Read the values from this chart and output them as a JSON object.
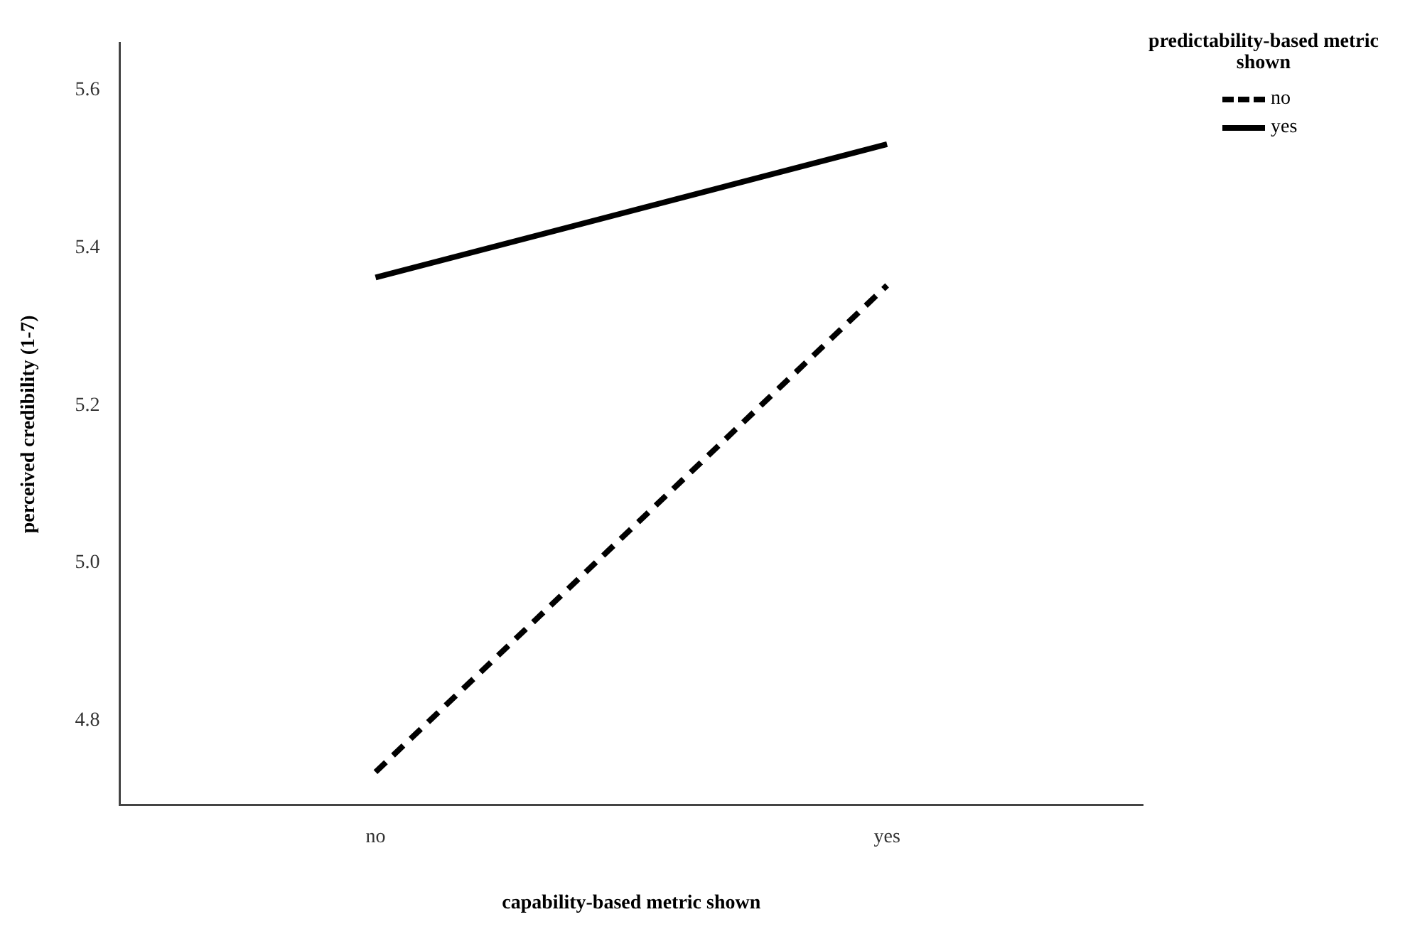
{
  "chart_data": {
    "type": "line",
    "xlabel": "capability-based metric shown",
    "ylabel": "perceived credibility (1-7)",
    "legend_title": "predictability-based metric shown",
    "categories": [
      "no",
      "yes"
    ],
    "series": [
      {
        "name": "no",
        "color": "#000000",
        "values": [
          4.735,
          5.352
        ],
        "line_style": "dashed"
      },
      {
        "name": "yes",
        "color": "#000000",
        "values": [
          5.362,
          5.531
        ],
        "line_style": "solid"
      }
    ],
    "ylim": [
      4.693,
      5.659
    ],
    "yticks": [
      {
        "value": 4.8,
        "label": "4.8"
      },
      {
        "value": 5.0,
        "label": "5.0"
      },
      {
        "value": 5.2,
        "label": "5.2"
      },
      {
        "value": 5.4,
        "label": "5.4"
      },
      {
        "value": 5.6,
        "label": "5.6"
      }
    ],
    "grid": false,
    "legend": "top right",
    "marker": "none"
  }
}
